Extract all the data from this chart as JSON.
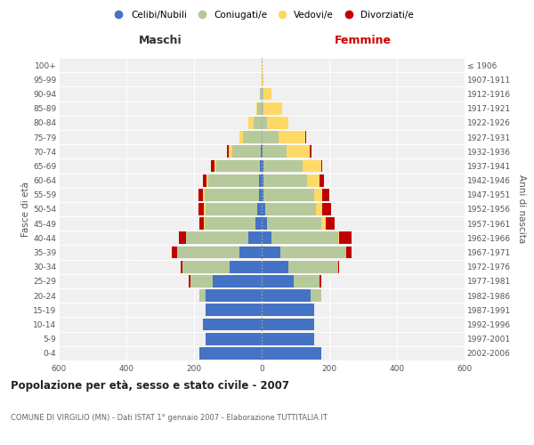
{
  "age_groups": [
    "0-4",
    "5-9",
    "10-14",
    "15-19",
    "20-24",
    "25-29",
    "30-34",
    "35-39",
    "40-44",
    "45-49",
    "50-54",
    "55-59",
    "60-64",
    "65-69",
    "70-74",
    "75-79",
    "80-84",
    "85-89",
    "90-94",
    "95-99",
    "100+"
  ],
  "birth_years": [
    "2002-2006",
    "1997-2001",
    "1992-1996",
    "1987-1991",
    "1982-1986",
    "1977-1981",
    "1972-1976",
    "1967-1971",
    "1962-1966",
    "1957-1961",
    "1952-1956",
    "1947-1951",
    "1942-1946",
    "1937-1941",
    "1932-1936",
    "1927-1931",
    "1922-1926",
    "1917-1921",
    "1912-1916",
    "1907-1911",
    "≤ 1906"
  ],
  "males": {
    "celibe": [
      185,
      165,
      175,
      165,
      165,
      145,
      95,
      65,
      40,
      18,
      12,
      8,
      8,
      5,
      3,
      0,
      0,
      0,
      0,
      0,
      0
    ],
    "coniugato": [
      0,
      0,
      0,
      0,
      18,
      65,
      140,
      185,
      185,
      150,
      155,
      160,
      150,
      130,
      85,
      55,
      25,
      12,
      5,
      0,
      0
    ],
    "vedovo": [
      0,
      0,
      0,
      0,
      0,
      0,
      0,
      0,
      0,
      2,
      5,
      5,
      5,
      5,
      10,
      10,
      15,
      5,
      0,
      0,
      0
    ],
    "divorziato": [
      0,
      0,
      0,
      0,
      0,
      5,
      5,
      15,
      20,
      15,
      15,
      15,
      10,
      10,
      5,
      2,
      0,
      0,
      0,
      0,
      0
    ]
  },
  "females": {
    "nubile": [
      175,
      155,
      155,
      155,
      145,
      95,
      80,
      55,
      30,
      15,
      10,
      5,
      5,
      5,
      3,
      0,
      0,
      0,
      0,
      0,
      0
    ],
    "coniugata": [
      0,
      0,
      0,
      0,
      30,
      75,
      145,
      195,
      195,
      160,
      150,
      150,
      130,
      115,
      70,
      50,
      15,
      5,
      5,
      0,
      0
    ],
    "vedova": [
      0,
      0,
      0,
      0,
      0,
      0,
      0,
      0,
      5,
      15,
      20,
      25,
      35,
      55,
      70,
      80,
      65,
      55,
      25,
      5,
      2
    ],
    "divorziata": [
      0,
      0,
      0,
      0,
      0,
      5,
      5,
      15,
      35,
      25,
      25,
      20,
      15,
      5,
      5,
      2,
      0,
      0,
      0,
      0,
      0
    ]
  },
  "colors": {
    "celibe": "#4472c4",
    "coniugato": "#b5c99a",
    "vedovo": "#ffd966",
    "divorziato": "#c00000"
  },
  "title": "Popolazione per età, sesso e stato civile - 2007",
  "subtitle": "COMUNE DI VIRGILIO (MN) - Dati ISTAT 1° gennaio 2007 - Elaborazione TUTTITALIA.IT",
  "xlabel_left": "Maschi",
  "xlabel_right": "Femmine",
  "ylabel_left": "Fasce di età",
  "ylabel_right": "Anni di nascita",
  "xlim": 600,
  "legend_labels": [
    "Celibi/Nubili",
    "Coniugati/e",
    "Vedovi/e",
    "Divorziati/e"
  ],
  "bg_plot": "#f0f0f0",
  "bg_fig": "#ffffff",
  "grid_color": "#ffffff"
}
